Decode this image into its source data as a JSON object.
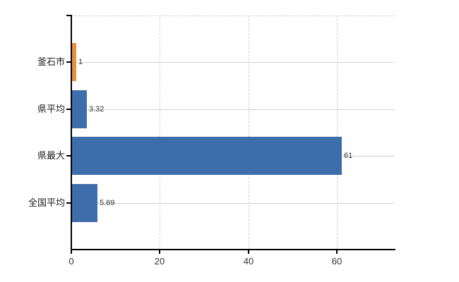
{
  "chart_data": {
    "type": "bar",
    "orientation": "horizontal",
    "title": "",
    "xlabel": "",
    "ylabel": "",
    "categories": [
      "釜石市",
      "県平均",
      "県最大",
      "全国平均"
    ],
    "values": [
      1,
      3.32,
      61,
      5.69
    ],
    "value_labels": [
      "1",
      "3.32",
      "61",
      "5.69"
    ],
    "bar_colors": [
      "#e8913c",
      "#3d6dab",
      "#3d6dab",
      "#3d6dab"
    ],
    "x_ticks": [
      0,
      20,
      40,
      60
    ],
    "x_tick_labels": [
      "0",
      "20",
      "40",
      "60"
    ],
    "xlim": [
      0,
      73
    ],
    "legend": "none",
    "grid": {
      "vertical_style": "dashed",
      "horizontal_style": "solid",
      "top_border_style": "dashed"
    }
  },
  "colors": {
    "bar_blue": "#3d6dab",
    "bar_orange": "#e8913c",
    "grid_horizontal": "#ccd4cc",
    "grid_vertical": "#d5cfd5",
    "axis": "#000000",
    "value_text": "#333333",
    "tick_text": "#333333",
    "category_text": "#222222",
    "background": "#ffffff"
  }
}
